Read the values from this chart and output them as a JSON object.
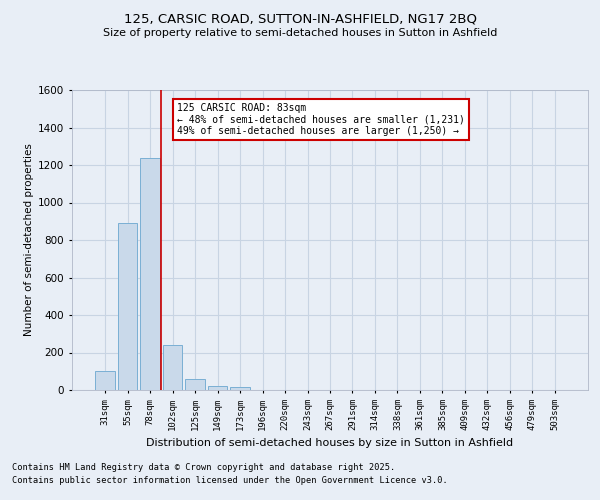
{
  "title": "125, CARSIC ROAD, SUTTON-IN-ASHFIELD, NG17 2BQ",
  "subtitle": "Size of property relative to semi-detached houses in Sutton in Ashfield",
  "xlabel": "Distribution of semi-detached houses by size in Sutton in Ashfield",
  "ylabel": "Number of semi-detached properties",
  "categories": [
    "31sqm",
    "55sqm",
    "78sqm",
    "102sqm",
    "125sqm",
    "149sqm",
    "173sqm",
    "196sqm",
    "220sqm",
    "243sqm",
    "267sqm",
    "291sqm",
    "314sqm",
    "338sqm",
    "361sqm",
    "385sqm",
    "409sqm",
    "432sqm",
    "456sqm",
    "479sqm",
    "503sqm"
  ],
  "values": [
    100,
    890,
    1240,
    240,
    60,
    20,
    15,
    0,
    0,
    0,
    0,
    0,
    0,
    0,
    0,
    0,
    0,
    0,
    0,
    0,
    0
  ],
  "bar_color": "#c9d9ea",
  "bar_edge_color": "#7aafd4",
  "grid_color": "#c8d4e3",
  "background_color": "#e8eef6",
  "red_line_x": 2.5,
  "annotation_title": "125 CARSIC ROAD: 83sqm",
  "annotation_line1": "← 48% of semi-detached houses are smaller (1,231)",
  "annotation_line2": "49% of semi-detached houses are larger (1,250) →",
  "annotation_box_color": "#ffffff",
  "annotation_border_color": "#cc0000",
  "red_line_color": "#cc0000",
  "footnote1": "Contains HM Land Registry data © Crown copyright and database right 2025.",
  "footnote2": "Contains public sector information licensed under the Open Government Licence v3.0.",
  "ylim": [
    0,
    1600
  ],
  "yticks": [
    0,
    200,
    400,
    600,
    800,
    1000,
    1200,
    1400,
    1600
  ]
}
